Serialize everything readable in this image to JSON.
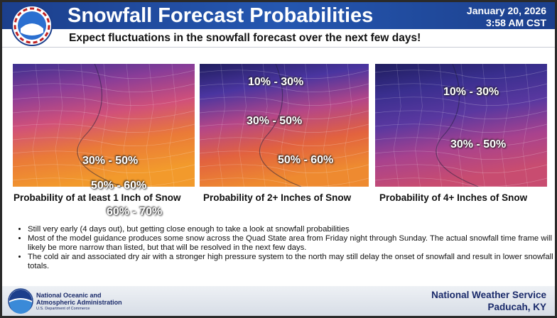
{
  "header": {
    "title": "Snowfall Forecast Probabilities",
    "date": "January 20, 2026",
    "time": "3:58 AM CST",
    "subtitle": "Expect fluctuations in the snowfall forecast over the next few days!"
  },
  "panels": [
    {
      "caption": "Probability of at least 1 Inch of Snow",
      "labels": [
        "30% - 50%",
        "50% - 60%",
        "60% - 70%"
      ]
    },
    {
      "caption": "Probability of 2+ Inches of Snow",
      "labels": [
        "10% - 30%",
        "30% - 50%",
        "50% - 60%"
      ]
    },
    {
      "caption": "Probability of 4+ Inches of Snow",
      "labels": [
        "10% - 30%",
        "30% - 50%"
      ]
    }
  ],
  "bullets": [
    "Still very early (4 days out), but getting close enough to take a look at snowfall probabilities",
    "Most of the model guidance produces some snow across the Quad State area from Friday night through Sunday. The actual snowfall time frame will likely be more narrow than listed, but that will be resolved in the next few days.",
    "The cold air and associated dry air with a stronger high pressure system to the north may still delay the onset of snowfall and result in lower snowfall totals."
  ],
  "footer": {
    "agency_line1": "National Oceanic and",
    "agency_line2": "Atmospheric Administration",
    "department": "U.S. Department of Commerce",
    "office": "National Weather Service",
    "location": "Paducah, KY"
  }
}
